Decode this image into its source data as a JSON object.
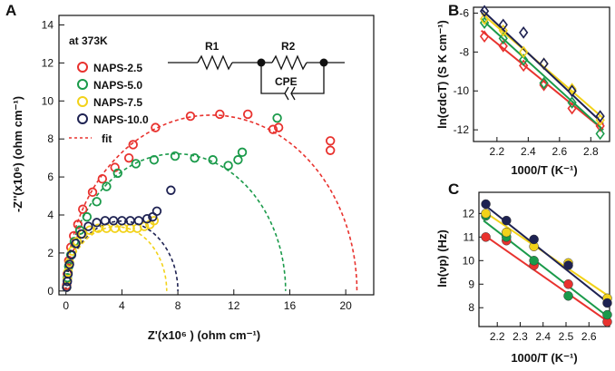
{
  "colors": {
    "red": "#e8322e",
    "green": "#1a9a4a",
    "yellow": "#f2d21a",
    "navy": "#1e2252",
    "black": "#111111",
    "fit": "#e8322e"
  },
  "chart_data": [
    {
      "panel": "A",
      "type": "scatter",
      "title": "at 373K",
      "xlabel": "Z'(x10⁶ ) (ohm cm⁻¹)",
      "ylabel": "-Z''(x10⁶) (ohm cm⁻¹)",
      "xlim": [
        -0.5,
        22
      ],
      "ylim": [
        -0.2,
        14.5
      ],
      "xticks": [
        0,
        4,
        8,
        12,
        16,
        20
      ],
      "yticks": [
        0,
        2,
        4,
        6,
        8,
        10,
        12,
        14
      ],
      "legend_position": "top-left",
      "circuit": {
        "r1": "R1",
        "r2": "R2",
        "cpe": "CPE"
      },
      "series": [
        {
          "name": "NAPS-2.5",
          "color_key": "red",
          "fit": {
            "r0": 0,
            "r": 20.8,
            "depression": 0.89
          },
          "points": [
            [
              0.05,
              0.3
            ],
            [
              0.1,
              0.9
            ],
            [
              0.2,
              1.6
            ],
            [
              0.35,
              2.3
            ],
            [
              0.55,
              2.9
            ],
            [
              0.85,
              3.5
            ],
            [
              1.2,
              4.3
            ],
            [
              1.9,
              5.2
            ],
            [
              2.6,
              5.9
            ],
            [
              3.5,
              6.5
            ],
            [
              4.5,
              7.0
            ],
            [
              4.8,
              7.7
            ],
            [
              6.4,
              8.6
            ],
            [
              8.9,
              9.2
            ],
            [
              11,
              9.3
            ],
            [
              13,
              9.3
            ],
            [
              14.8,
              8.5
            ],
            [
              15.2,
              8.6
            ],
            [
              18.9,
              7.4
            ],
            [
              18.9,
              7.9
            ]
          ]
        },
        {
          "name": "NAPS-5.0",
          "color_key": "green",
          "fit": {
            "r0": 0,
            "r": 15.7,
            "depression": 0.92
          },
          "points": [
            [
              0.05,
              0.2
            ],
            [
              0.1,
              0.7
            ],
            [
              0.2,
              1.3
            ],
            [
              0.35,
              1.9
            ],
            [
              0.6,
              2.6
            ],
            [
              1.0,
              3.2
            ],
            [
              1.5,
              3.9
            ],
            [
              2.2,
              4.7
            ],
            [
              2.9,
              5.5
            ],
            [
              3.7,
              6.2
            ],
            [
              5.0,
              6.7
            ],
            [
              6.3,
              6.9
            ],
            [
              7.8,
              7.1
            ],
            [
              9.2,
              7.0
            ],
            [
              10.5,
              6.9
            ],
            [
              11.6,
              6.6
            ],
            [
              12.3,
              6.9
            ],
            [
              12.6,
              7.3
            ],
            [
              15.1,
              9.1
            ]
          ]
        },
        {
          "name": "NAPS-7.5",
          "color_key": "yellow",
          "fit": {
            "r0": 0,
            "r": 7.2,
            "depression": 0.94
          },
          "points": [
            [
              0.05,
              0.2
            ],
            [
              0.1,
              0.6
            ],
            [
              0.15,
              1.0
            ],
            [
              0.25,
              1.5
            ],
            [
              0.45,
              2.1
            ],
            [
              0.8,
              2.6
            ],
            [
              1.2,
              3.0
            ],
            [
              1.7,
              3.2
            ],
            [
              2.3,
              3.3
            ],
            [
              2.9,
              3.3
            ],
            [
              3.5,
              3.3
            ],
            [
              4.1,
              3.3
            ],
            [
              4.6,
              3.3
            ],
            [
              5.1,
              3.3
            ],
            [
              5.6,
              3.4
            ],
            [
              6.0,
              3.5
            ],
            [
              6.3,
              3.7
            ]
          ]
        },
        {
          "name": "NAPS-10.0",
          "color_key": "navy",
          "fit": {
            "r0": 0,
            "r": 8.0,
            "depression": 0.92
          },
          "points": [
            [
              0.05,
              0.2
            ],
            [
              0.1,
              0.5
            ],
            [
              0.15,
              0.9
            ],
            [
              0.25,
              1.4
            ],
            [
              0.4,
              1.9
            ],
            [
              0.7,
              2.5
            ],
            [
              1.1,
              3.0
            ],
            [
              1.6,
              3.4
            ],
            [
              2.2,
              3.6
            ],
            [
              2.8,
              3.7
            ],
            [
              3.4,
              3.7
            ],
            [
              4.0,
              3.7
            ],
            [
              4.6,
              3.7
            ],
            [
              5.2,
              3.7
            ],
            [
              5.8,
              3.8
            ],
            [
              6.2,
              3.9
            ],
            [
              6.5,
              4.2
            ],
            [
              7.5,
              5.3
            ]
          ]
        }
      ],
      "fit_label": "fit"
    },
    {
      "panel": "B",
      "type": "scatter",
      "xlabel": "1000/T (K⁻¹)",
      "ylabel": "ln(σdcT) (S K cm⁻¹)",
      "xlim": [
        2.05,
        2.92
      ],
      "ylim": [
        -12.6,
        -5.7
      ],
      "xticks": [
        2.2,
        2.4,
        2.6,
        2.8
      ],
      "yticks": [
        -6,
        -8,
        -10,
        -12
      ],
      "series": [
        {
          "name": "NAPS-2.5",
          "color_key": "red",
          "x": [
            2.12,
            2.24,
            2.37,
            2.5,
            2.68,
            2.86
          ],
          "y": [
            -7.2,
            -7.7,
            -8.7,
            -9.7,
            -10.9,
            -11.8
          ],
          "fit": [
            -6.9,
            -12.0
          ]
        },
        {
          "name": "NAPS-5.0",
          "color_key": "green",
          "x": [
            2.12,
            2.24,
            2.37,
            2.5,
            2.68,
            2.86
          ],
          "y": [
            -6.5,
            -7.3,
            -8.4,
            -9.6,
            -10.6,
            -12.2
          ],
          "fit": [
            -6.3,
            -12.0
          ]
        },
        {
          "name": "NAPS-7.5",
          "color_key": "yellow",
          "x": [
            2.12,
            2.24,
            2.37,
            2.5,
            2.68,
            2.86
          ],
          "y": [
            -6.3,
            -6.9,
            -8.0,
            -8.6,
            -9.9,
            -11.5
          ],
          "fit": [
            -6.0,
            -11.4
          ]
        },
        {
          "name": "NAPS-10.0",
          "color_key": "navy",
          "x": [
            2.12,
            2.24,
            2.37,
            2.5,
            2.68,
            2.86
          ],
          "y": [
            -5.9,
            -6.6,
            -7.0,
            -8.6,
            -10.0,
            -11.3
          ],
          "fit": [
            -5.8,
            -11.7
          ]
        }
      ],
      "fit_x": [
        2.1,
        2.88
      ]
    },
    {
      "panel": "C",
      "type": "scatter",
      "xlabel": "1000/T (K⁻¹)",
      "ylabel": "ln(νp) (Hz)",
      "xlim": [
        2.12,
        2.69
      ],
      "ylim": [
        7.2,
        12.9
      ],
      "xticks": [
        2.2,
        2.3,
        2.4,
        2.5,
        2.6
      ],
      "yticks": [
        8,
        9,
        10,
        11,
        12
      ],
      "series": [
        {
          "name": "NAPS-2.5",
          "color_key": "red",
          "x": [
            2.15,
            2.24,
            2.36,
            2.51,
            2.68
          ],
          "y": [
            11.0,
            10.85,
            9.8,
            9.0,
            7.4
          ],
          "fit": [
            11.1,
            7.4
          ]
        },
        {
          "name": "NAPS-5.0",
          "color_key": "green",
          "x": [
            2.15,
            2.24,
            2.36,
            2.51,
            2.68
          ],
          "y": [
            11.9,
            11.0,
            10.0,
            8.5,
            7.7
          ],
          "fit": [
            11.7,
            7.6
          ]
        },
        {
          "name": "NAPS-7.5",
          "color_key": "yellow",
          "x": [
            2.15,
            2.24,
            2.36,
            2.51,
            2.68
          ],
          "y": [
            12.0,
            11.2,
            10.6,
            9.9,
            8.4
          ],
          "fit": [
            12.1,
            8.5
          ]
        },
        {
          "name": "NAPS-10.0",
          "color_key": "navy",
          "x": [
            2.15,
            2.24,
            2.36,
            2.51,
            2.68
          ],
          "y": [
            12.4,
            11.7,
            10.9,
            9.8,
            8.2
          ],
          "fit": [
            12.4,
            8.2
          ]
        }
      ],
      "fit_x": [
        2.14,
        2.685
      ]
    }
  ]
}
